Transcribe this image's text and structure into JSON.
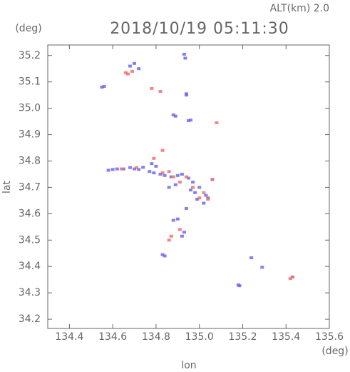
{
  "chart_data": {
    "type": "scatter",
    "title": "2018/10/19 05:11:30",
    "subtitle": "ALT(km) 2.0",
    "y_unit": "(deg)",
    "x_unit": "(deg)",
    "x_label": "lon",
    "y_label": "lat",
    "xlim": [
      134.3,
      135.6
    ],
    "ylim": [
      34.165,
      35.24
    ],
    "xticks": [
      134.4,
      134.6,
      134.8,
      {
        "value": 135,
        "label": "135.0"
      },
      135.2,
      135.4,
      135.6
    ],
    "yticks": [
      34.2,
      34.3,
      34.4,
      34.5,
      34.6,
      34.7,
      34.8,
      34.9,
      {
        "value": 35,
        "label": "35.0"
      },
      35.1,
      35.2
    ],
    "series": [
      {
        "color": "#6b6bea",
        "x": [
          134.55,
          134.56,
          134.68,
          134.7,
          134.72,
          134.93,
          134.935,
          134.94,
          134.94,
          134.89,
          134.88,
          134.95,
          134.96,
          134.58,
          134.6,
          134.62,
          134.65,
          134.68,
          134.7,
          134.72,
          134.74,
          134.77,
          134.79,
          134.82,
          134.84,
          134.87,
          134.9,
          134.92,
          134.95,
          134.97,
          135.0,
          135.06,
          135.04,
          135.02,
          134.98,
          134.96,
          134.88,
          134.9,
          134.93,
          134.92,
          134.83,
          134.84,
          135.24,
          135.29,
          135.185,
          135.18,
          135.43,
          134.86,
          134.89,
          134.94,
          134.99,
          135.03,
          134.78,
          134.8
        ],
        "y": [
          35.08,
          35.083,
          35.16,
          35.17,
          35.15,
          35.205,
          35.19,
          35.05,
          35.055,
          34.97,
          34.975,
          34.953,
          34.955,
          34.765,
          34.768,
          34.77,
          34.77,
          34.775,
          34.77,
          34.768,
          34.776,
          34.76,
          34.755,
          34.75,
          34.745,
          34.74,
          34.745,
          34.75,
          34.735,
          34.72,
          34.7,
          34.73,
          34.66,
          34.64,
          34.68,
          34.69,
          34.575,
          34.58,
          34.53,
          34.515,
          34.445,
          34.44,
          34.433,
          34.397,
          34.327,
          34.33,
          34.36,
          34.7,
          34.71,
          34.62,
          34.655,
          34.67,
          34.79,
          34.78
        ]
      },
      {
        "color": "#f07070",
        "x": [
          134.66,
          134.67,
          134.69,
          134.78,
          134.82,
          135.08,
          134.83,
          134.79,
          134.83,
          134.86,
          134.88,
          134.91,
          134.94,
          135.0,
          135.04,
          135.06,
          134.64,
          134.71,
          134.87,
          134.91,
          134.86,
          135.42,
          135.43,
          134.97,
          135.02
        ],
        "y": [
          35.135,
          35.13,
          35.14,
          35.075,
          35.064,
          34.945,
          34.84,
          34.81,
          34.755,
          34.76,
          34.74,
          34.72,
          34.74,
          34.66,
          34.655,
          34.73,
          34.77,
          34.775,
          34.515,
          34.54,
          34.5,
          34.354,
          34.36,
          34.7,
          34.68
        ]
      }
    ]
  }
}
